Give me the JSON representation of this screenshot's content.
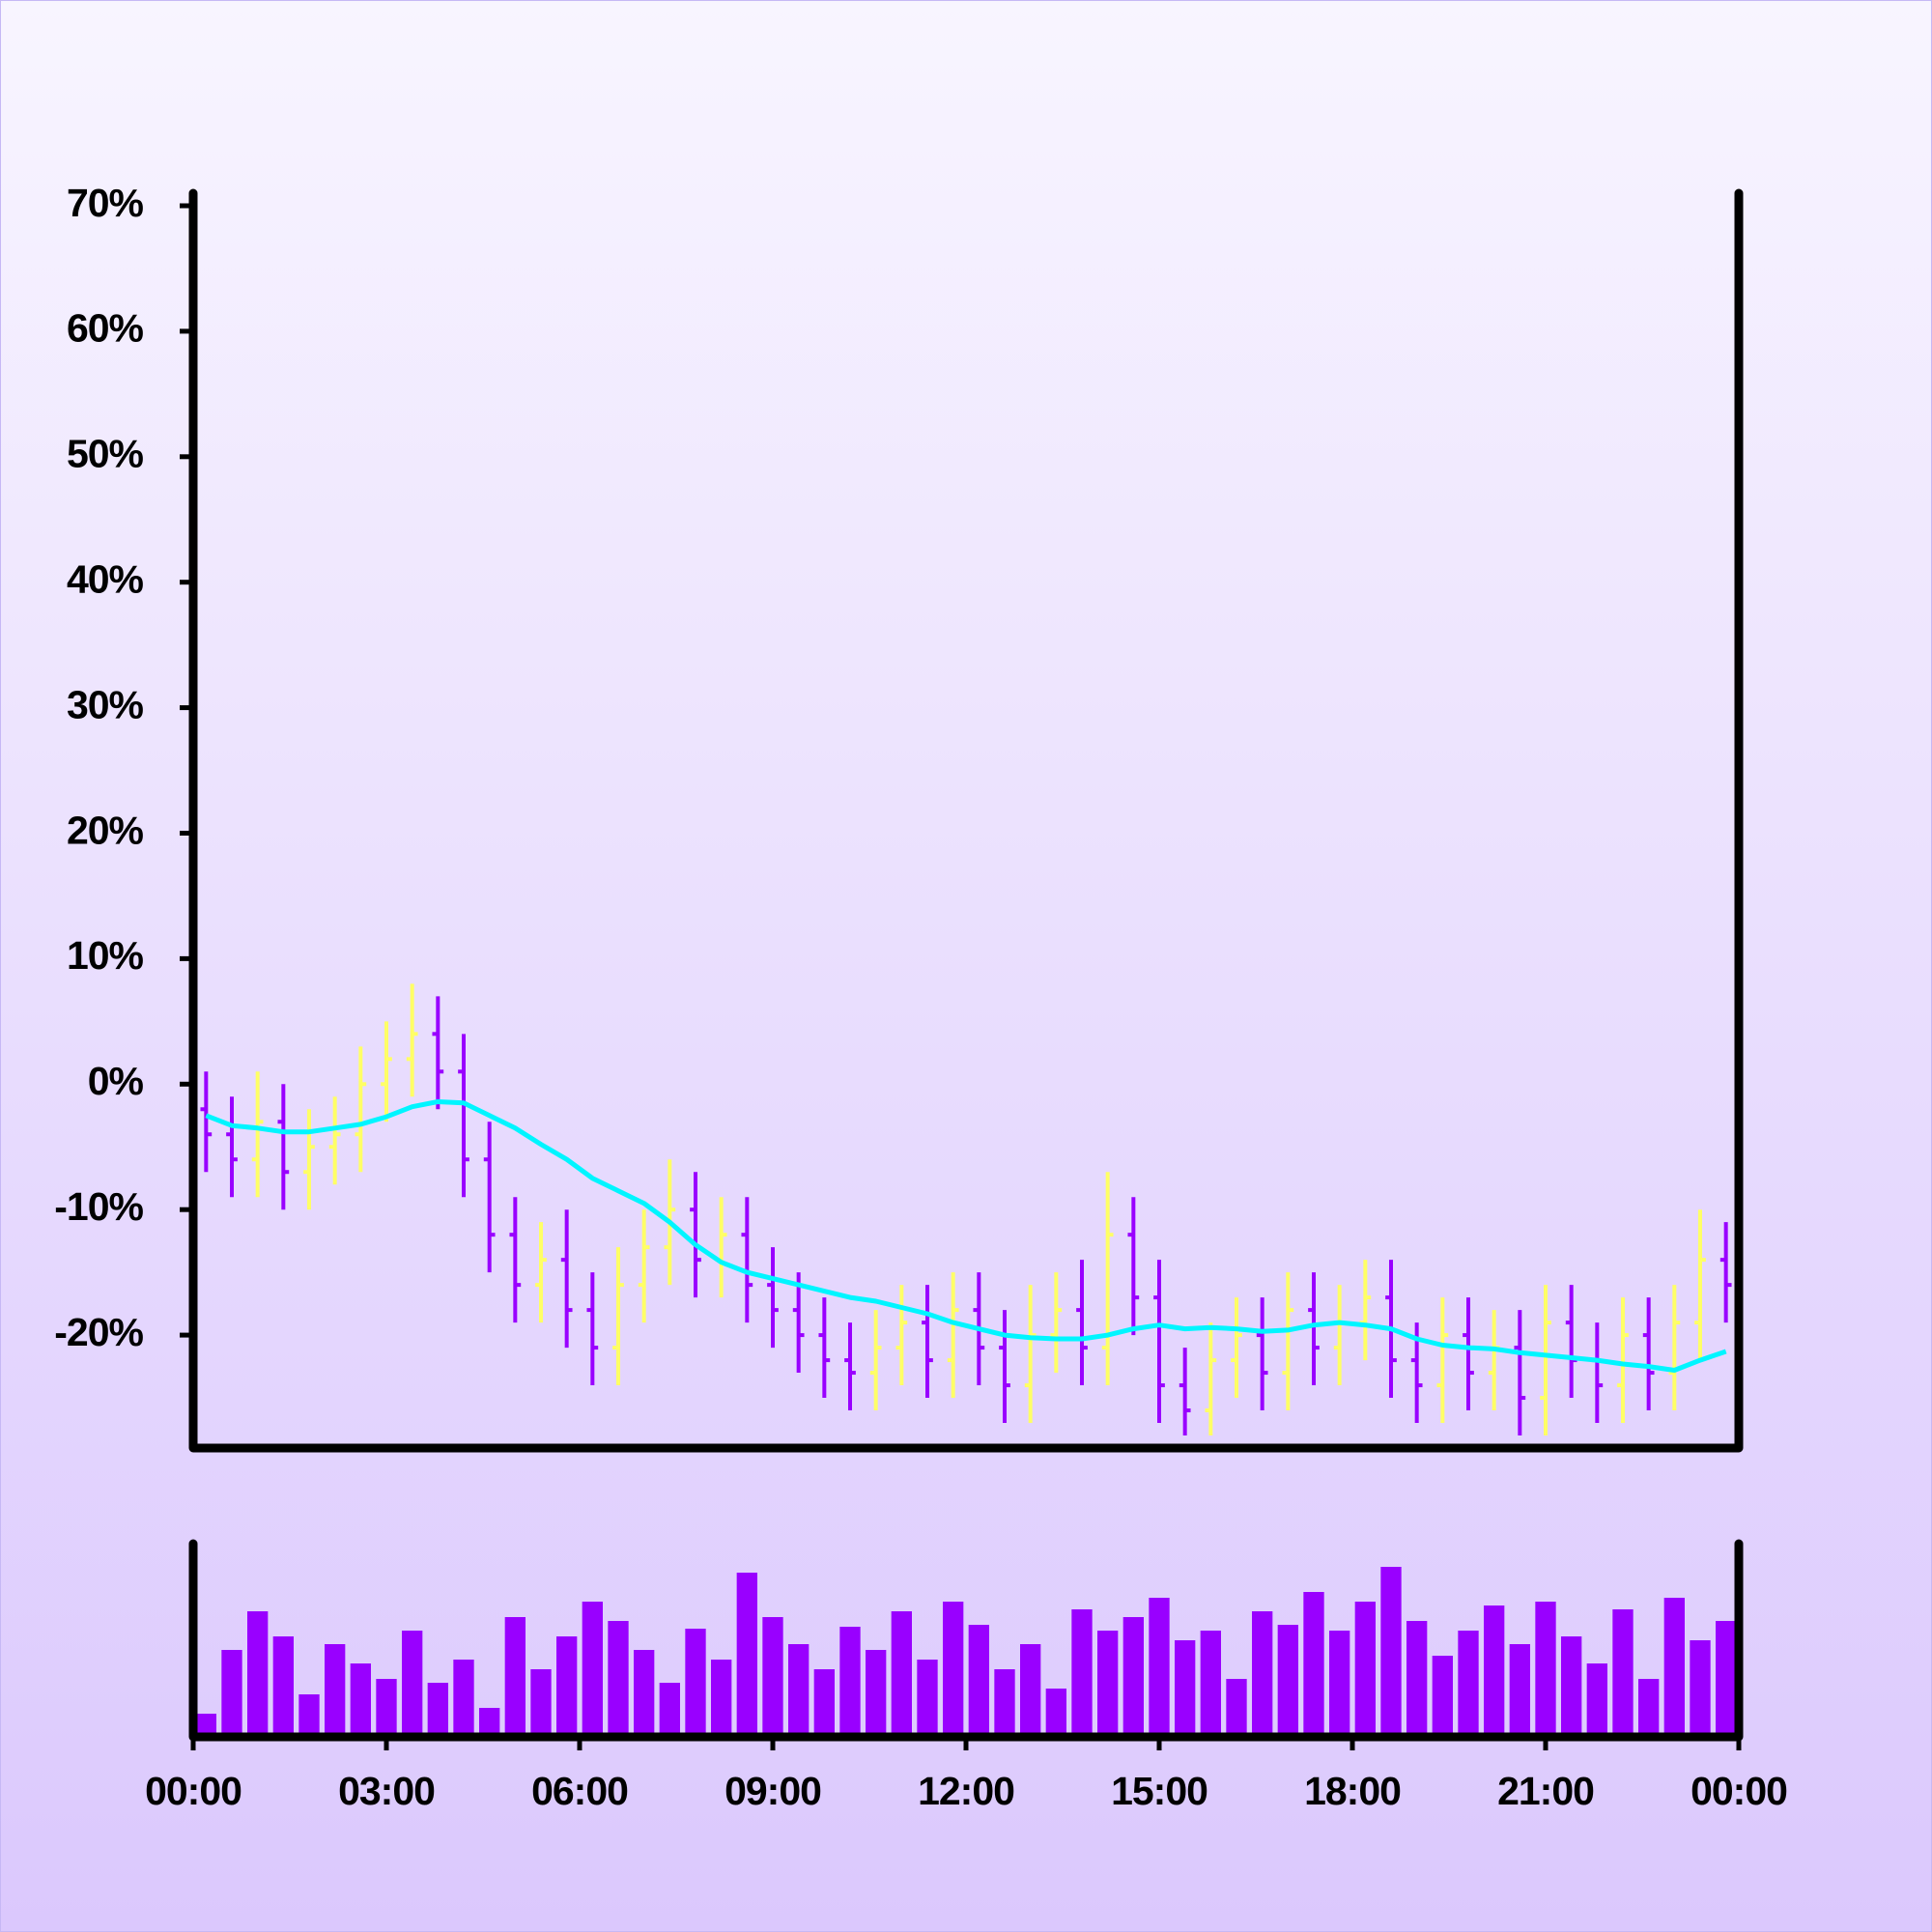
{
  "chart_data": [
    {
      "type": "ohlc",
      "x": [
        0.2,
        0.6,
        1.0,
        1.4,
        1.8,
        2.2,
        2.6,
        3.0,
        3.4,
        3.8,
        4.2,
        4.6,
        5.0,
        5.4,
        5.8,
        6.2,
        6.6,
        7.0,
        7.4,
        7.8,
        8.2,
        8.6,
        9.0,
        9.4,
        9.8,
        10.2,
        10.6,
        11.0,
        11.4,
        11.8,
        12.2,
        12.6,
        13.0,
        13.4,
        13.8,
        14.2,
        14.6,
        15.0,
        15.4,
        15.8,
        16.2,
        16.6,
        17.0,
        17.4,
        17.8,
        18.2,
        18.6,
        19.0,
        19.4,
        19.8,
        20.2,
        20.6,
        21.0,
        21.4,
        21.8,
        22.2,
        22.6,
        23.0,
        23.4,
        23.8
      ],
      "open": [
        -2,
        -4,
        -6,
        -3,
        -7,
        -5,
        -4,
        0,
        2,
        4,
        1,
        -6,
        -12,
        -16,
        -14,
        -18,
        -21,
        -16,
        -13,
        -10,
        -14,
        -12,
        -16,
        -18,
        -20,
        -22,
        -23,
        -21,
        -19,
        -22,
        -18,
        -21,
        -24,
        -20,
        -18,
        -21,
        -12,
        -17,
        -24,
        -26,
        -22,
        -20,
        -23,
        -18,
        -21,
        -19,
        -17,
        -22,
        -24,
        -20,
        -23,
        -21,
        -25,
        -19,
        -22,
        -24,
        -20,
        -23,
        -19,
        -14
      ],
      "high": [
        1,
        -1,
        1,
        0,
        -2,
        -1,
        3,
        5,
        8,
        7,
        4,
        -3,
        -9,
        -11,
        -10,
        -15,
        -13,
        -10,
        -6,
        -7,
        -9,
        -9,
        -13,
        -15,
        -17,
        -19,
        -18,
        -16,
        -16,
        -15,
        -15,
        -18,
        -16,
        -15,
        -14,
        -7,
        -9,
        -14,
        -21,
        -19,
        -17,
        -17,
        -15,
        -15,
        -16,
        -14,
        -14,
        -19,
        -17,
        -17,
        -18,
        -18,
        -16,
        -16,
        -19,
        -17,
        -17,
        -16,
        -10,
        -11
      ],
      "low": [
        -7,
        -9,
        -9,
        -10,
        -10,
        -8,
        -7,
        -3,
        -1,
        -2,
        -9,
        -15,
        -19,
        -19,
        -21,
        -24,
        -24,
        -19,
        -16,
        -17,
        -17,
        -19,
        -21,
        -23,
        -25,
        -26,
        -26,
        -24,
        -25,
        -25,
        -24,
        -27,
        -27,
        -23,
        -24,
        -24,
        -20,
        -27,
        -28,
        -28,
        -25,
        -26,
        -26,
        -24,
        -24,
        -22,
        -25,
        -27,
        -27,
        -26,
        -26,
        -28,
        -28,
        -25,
        -27,
        -27,
        -26,
        -26,
        -22,
        -19
      ],
      "close": [
        -4,
        -6,
        -3,
        -7,
        -5,
        -4,
        0,
        2,
        4,
        1,
        -6,
        -12,
        -16,
        -14,
        -18,
        -21,
        -16,
        -13,
        -10,
        -14,
        -12,
        -16,
        -18,
        -20,
        -22,
        -23,
        -21,
        -19,
        -22,
        -18,
        -21,
        -24,
        -20,
        -18,
        -21,
        -12,
        -17,
        -24,
        -26,
        -22,
        -20,
        -23,
        -18,
        -21,
        -19,
        -17,
        -22,
        -24,
        -20,
        -23,
        -21,
        -25,
        -19,
        -22,
        -24,
        -20,
        -23,
        -19,
        -14,
        -16
      ],
      "up_color": "#ffff66",
      "down_color": "#9900ff",
      "overlay": {
        "color": "#00f5ff",
        "values": [
          -2.5,
          -3.3,
          -3.5,
          -3.8,
          -3.8,
          -3.5,
          -3.2,
          -2.6,
          -1.8,
          -1.4,
          -1.5,
          -2.5,
          -3.5,
          -4.8,
          -6,
          -7.5,
          -8.5,
          -9.5,
          -11,
          -12.8,
          -14.2,
          -15,
          -15.5,
          -16,
          -16.5,
          -17,
          -17.3,
          -17.8,
          -18.3,
          -19,
          -19.5,
          -20,
          -20.2,
          -20.3,
          -20.3,
          -20,
          -19.5,
          -19.2,
          -19.5,
          -19.4,
          -19.5,
          -19.7,
          -19.6,
          -19.2,
          -19,
          -19.2,
          -19.5,
          -20.3,
          -20.8,
          -21,
          -21.1,
          -21.4,
          -21.6,
          -21.8,
          -22,
          -22.3,
          -22.5,
          -22.8,
          -22,
          -21.3
        ]
      },
      "xlim": [
        0,
        24
      ],
      "ylim": [
        -29,
        71
      ],
      "yticks": [
        {
          "value": -20,
          "label": "-20%"
        },
        {
          "value": -10,
          "label": "-10%"
        },
        {
          "value": 0,
          "label": "0%"
        },
        {
          "value": 10,
          "label": "10%"
        },
        {
          "value": 20,
          "label": "20%"
        },
        {
          "value": 30,
          "label": "30%"
        },
        {
          "value": 40,
          "label": "40%"
        },
        {
          "value": 50,
          "label": "50%"
        },
        {
          "value": 60,
          "label": "60%"
        },
        {
          "value": 70,
          "label": "70%"
        }
      ]
    },
    {
      "type": "bar",
      "color": "#9900ff",
      "values": [
        12,
        45,
        65,
        52,
        22,
        48,
        38,
        30,
        55,
        28,
        40,
        15,
        62,
        35,
        52,
        70,
        60,
        45,
        28,
        56,
        40,
        85,
        62,
        48,
        35,
        57,
        45,
        65,
        40,
        70,
        58,
        35,
        48,
        25,
        66,
        55,
        62,
        72,
        50,
        55,
        30,
        65,
        58,
        75,
        55,
        70,
        88,
        60,
        42,
        55,
        68,
        48,
        70,
        52,
        38,
        66,
        30,
        72,
        50,
        60
      ],
      "ylim": [
        0,
        100
      ],
      "xlim": [
        0,
        24
      ],
      "xticks": [
        {
          "value": 0,
          "label": "00:00"
        },
        {
          "value": 3,
          "label": "03:00"
        },
        {
          "value": 6,
          "label": "06:00"
        },
        {
          "value": 9,
          "label": "09:00"
        },
        {
          "value": 12,
          "label": "12:00"
        },
        {
          "value": 15,
          "label": "15:00"
        },
        {
          "value": 18,
          "label": "18:00"
        },
        {
          "value": 21,
          "label": "21:00"
        },
        {
          "value": 24,
          "label": "00:00"
        }
      ]
    }
  ]
}
